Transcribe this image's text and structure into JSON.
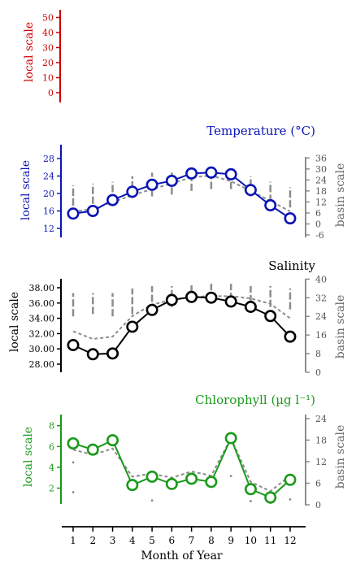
{
  "chart_data": [
    {
      "type": "line",
      "id": "extra",
      "ylabel": "local scale",
      "y_ticks": [
        0,
        10,
        20,
        30,
        40,
        50
      ],
      "color": "#cc0000",
      "title": "",
      "series": []
    },
    {
      "type": "line",
      "id": "temperature",
      "title": "Temperature (°C)",
      "ylabel": "local scale",
      "y2label": "basin scale",
      "color": "#0a14b4",
      "y_ticks": [
        12,
        16,
        20,
        24,
        28
      ],
      "y2_ticks": [
        -6,
        0,
        6,
        12,
        18,
        24,
        30,
        36
      ],
      "x": [
        1,
        2,
        3,
        4,
        5,
        6,
        7,
        8,
        9,
        10,
        11,
        12
      ],
      "series": [
        {
          "axis": "local",
          "values": [
            15.4,
            16.0,
            18.5,
            20.4,
            22.0,
            22.9,
            24.6,
            24.8,
            24.4,
            20.8,
            17.3,
            14.3
          ]
        },
        {
          "axis": "basin",
          "values": [
            15.8,
            16.5,
            18.0,
            19.6,
            21.0,
            22.3,
            23.7,
            24.1,
            22.8,
            20.6,
            18.3,
            15.9
          ]
        }
      ],
      "basin_ranges": [
        [
          10,
          21
        ],
        [
          11,
          22
        ],
        [
          12,
          23
        ],
        [
          14,
          26
        ],
        [
          15,
          28
        ],
        [
          16,
          28
        ],
        [
          18,
          29
        ],
        [
          19,
          29
        ],
        [
          19,
          28
        ],
        [
          15,
          26
        ],
        [
          12,
          23
        ],
        [
          9,
          20
        ]
      ]
    },
    {
      "type": "line",
      "id": "salinity",
      "title": "Salinity",
      "ylabel": "local scale",
      "y2label": "basin scale",
      "color": "#000000",
      "y_ticks": [
        "28.00",
        "30.00",
        "32.00",
        "34.00",
        "36.00",
        "38.00"
      ],
      "y2_ticks": [
        0,
        8,
        16,
        24,
        32,
        40
      ],
      "x": [
        1,
        2,
        3,
        4,
        5,
        6,
        7,
        8,
        9,
        10,
        11,
        12
      ],
      "series": [
        {
          "axis": "local",
          "values": [
            30.5,
            29.3,
            29.4,
            32.9,
            35.1,
            36.4,
            36.8,
            36.7,
            36.2,
            35.5,
            34.3,
            31.6
          ]
        },
        {
          "axis": "basin",
          "values": [
            32.3,
            31.3,
            31.6,
            34.3,
            35.8,
            36.4,
            36.8,
            36.9,
            36.9,
            36.6,
            35.9,
            34.0
          ]
        }
      ],
      "basin_ranges": [
        [
          24,
          34
        ],
        [
          25,
          34
        ],
        [
          24,
          34
        ],
        [
          25,
          36
        ],
        [
          26,
          37
        ],
        [
          28,
          37
        ],
        [
          30,
          38
        ],
        [
          31,
          38
        ],
        [
          31,
          38
        ],
        [
          30,
          37
        ],
        [
          28,
          37
        ],
        [
          27,
          36
        ]
      ]
    },
    {
      "type": "line",
      "id": "chlorophyll",
      "title": "Chlorophyll (µg l⁻¹)",
      "ylabel": "local scale",
      "y2label": "basin scale",
      "color": "#1a9a1a",
      "y_ticks": [
        2,
        4,
        6,
        8
      ],
      "y2_ticks": [
        0,
        6,
        12,
        18,
        24
      ],
      "x": [
        1,
        2,
        3,
        4,
        5,
        6,
        7,
        8,
        9,
        10,
        11,
        12
      ],
      "x_label": "Month of Year",
      "series": [
        {
          "axis": "local",
          "values": [
            6.3,
            5.7,
            6.6,
            2.3,
            3.1,
            2.4,
            2.9,
            2.6,
            6.8,
            1.9,
            1.1,
            2.8
          ]
        },
        {
          "axis": "basin",
          "values": [
            5.7,
            5.2,
            5.8,
            3.1,
            3.4,
            3.0,
            3.6,
            3.2,
            6.8,
            2.6,
            1.7,
            3.2
          ]
        }
      ],
      "basin_dots": [
        [
          1,
          11.8
        ],
        [
          1,
          3.5
        ],
        [
          5,
          1.2
        ],
        [
          9,
          8.0
        ],
        [
          10,
          1.0
        ],
        [
          11,
          0.5
        ],
        [
          12,
          1.5
        ]
      ]
    }
  ]
}
